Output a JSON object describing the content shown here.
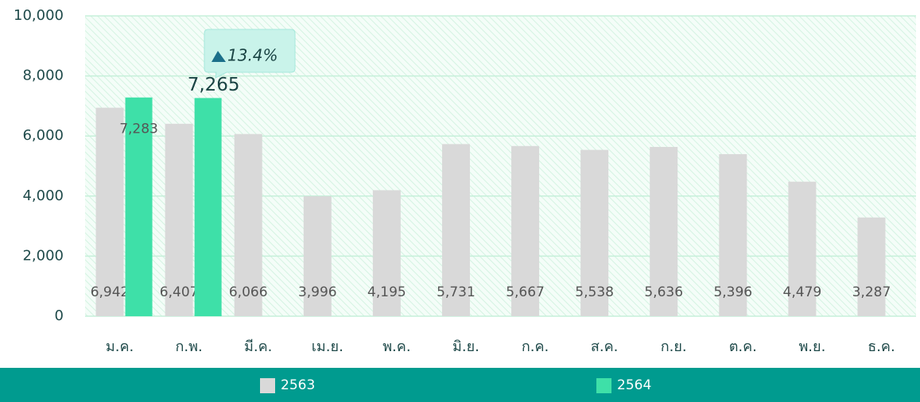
{
  "chart_data": {
    "type": "bar",
    "categories": [
      "ม.ค.",
      "ก.พ.",
      "มี.ค.",
      "เม.ย.",
      "พ.ค.",
      "มิ.ย.",
      "ก.ค.",
      "ส.ค.",
      "ก.ย.",
      "ต.ค.",
      "พ.ย.",
      "ธ.ค."
    ],
    "series": [
      {
        "name": "2563",
        "color": "#d9d9d9",
        "values": [
          6942,
          6407,
          6066,
          3996,
          4195,
          5731,
          5667,
          5538,
          5636,
          5396,
          4479,
          3287
        ],
        "value_labels": [
          "6,942",
          "6,407",
          "6,066",
          "3,996",
          "4,195",
          "5,731",
          "5,667",
          "5,538",
          "5,636",
          "5,396",
          "4,479",
          "3,287"
        ]
      },
      {
        "name": "2564",
        "color": "#3ee0a8",
        "values": [
          7283,
          7265,
          null,
          null,
          null,
          null,
          null,
          null,
          null,
          null,
          null,
          null
        ],
        "value_labels": [
          "7,283",
          "7,265",
          null,
          null,
          null,
          null,
          null,
          null,
          null,
          null,
          null,
          null
        ]
      }
    ],
    "annotation": "13.4%",
    "ylim": [
      0,
      10000
    ],
    "yticks": [
      0,
      {
        "value": 2000,
        "label": "2,000"
      },
      {
        "value": 4000,
        "label": "4,000"
      },
      {
        "value": 6000,
        "label": "6,000"
      },
      {
        "value": 8000,
        "label": "8,000"
      },
      {
        "value": 10000,
        "label": "10,000"
      }
    ],
    "grid": true
  }
}
